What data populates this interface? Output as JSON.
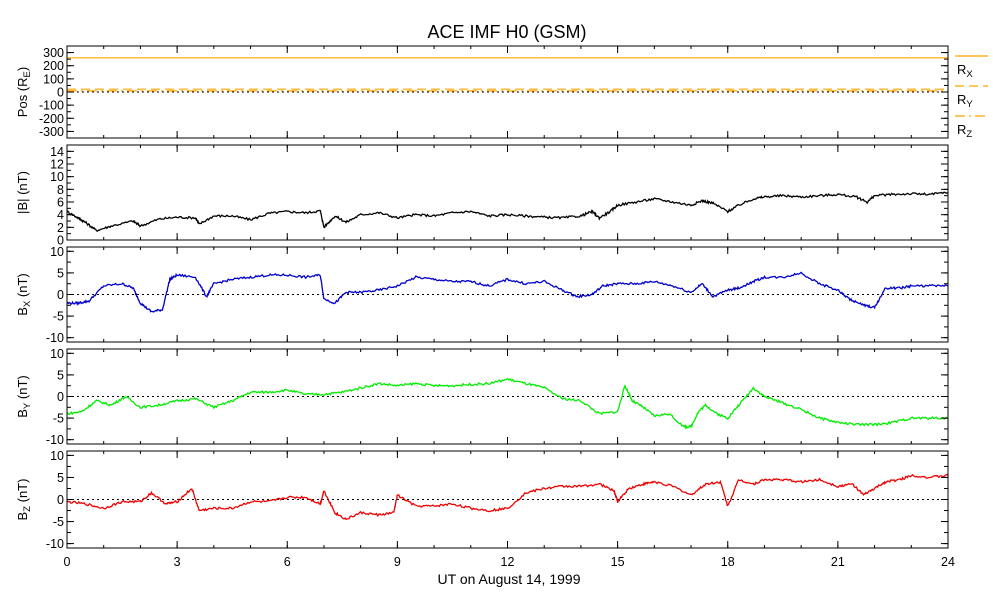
{
  "chart_data": {
    "type": "line",
    "title": "ACE IMF H0 (GSM)",
    "xlabel": "UT on August 14, 1999",
    "x_ticks": [
      "0",
      "3",
      "6",
      "9",
      "12",
      "15",
      "18",
      "21",
      "24"
    ],
    "xlim": [
      0,
      24
    ],
    "panels": [
      {
        "id": "pos",
        "ylabel": "Pos (R",
        "ylabel_sub": "E",
        "ylabel_end": ")",
        "ylim": [
          -350,
          350
        ],
        "y_ticks": [
          -300,
          -200,
          -100,
          0,
          100,
          200,
          300
        ],
        "y_tick_labels": [
          "-300",
          "-200",
          "-100",
          "0",
          "100",
          "200",
          "300"
        ],
        "zero_line": true,
        "series": [
          {
            "name": "R",
            "sub": "X",
            "color": "#ffa500",
            "dash": "solid",
            "x": [
              0,
              6,
              12,
              18,
              24
            ],
            "values": [
              260,
              260,
              260,
              260,
              260
            ]
          },
          {
            "name": "R",
            "sub": "Y",
            "color": "#ffa500",
            "dash": "dashed",
            "x": [
              0,
              6,
              12,
              18,
              24
            ],
            "values": [
              21,
              21,
              21,
              21,
              21
            ]
          },
          {
            "name": "R",
            "sub": "Z",
            "color": "#ffa500",
            "dash": "dashdot",
            "x": [
              0,
              6,
              12,
              18,
              24
            ],
            "values": [
              8,
              8,
              8,
              8,
              8
            ]
          }
        ]
      },
      {
        "id": "bmag",
        "ylabel": "|B| (nT)",
        "ylim": [
          0,
          15
        ],
        "y_ticks": [
          0,
          2,
          4,
          6,
          8,
          10,
          12,
          14
        ],
        "y_tick_labels": [
          "0",
          "2",
          "4",
          "6",
          "8",
          "10",
          "12",
          "14"
        ],
        "zero_line": false,
        "series": [
          {
            "name": "|B|",
            "color": "#000000",
            "x": [
              0,
              0.3,
              0.5,
              0.8,
              1.2,
              1.8,
              2.0,
              2.5,
              3.0,
              3.5,
              3.6,
              4.0,
              4.5,
              5.0,
              5.5,
              6.0,
              6.5,
              6.9,
              7.0,
              7.3,
              7.6,
              8.0,
              8.5,
              9.0,
              9.5,
              10.0,
              10.5,
              11.0,
              11.5,
              12.0,
              12.5,
              13.0,
              13.5,
              14.0,
              14.3,
              14.5,
              14.8,
              15.0,
              15.5,
              16.0,
              16.5,
              17.0,
              17.3,
              17.6,
              18.0,
              18.3,
              18.7,
              19.0,
              19.5,
              20.0,
              20.5,
              21.0,
              21.5,
              21.8,
              22.0,
              22.5,
              23.0,
              23.5,
              24.0
            ],
            "values": [
              4.5,
              3.5,
              2.8,
              1.5,
              2.2,
              3.0,
              2.2,
              3.3,
              3.6,
              3.5,
              2.5,
              3.8,
              3.8,
              3.2,
              4.2,
              4.5,
              4.3,
              4.6,
              2.0,
              3.8,
              2.8,
              4.0,
              4.3,
              3.5,
              4.0,
              3.8,
              4.3,
              4.5,
              3.8,
              4.0,
              3.8,
              3.6,
              3.5,
              3.8,
              4.5,
              3.5,
              4.5,
              5.5,
              6.0,
              6.5,
              6.0,
              5.5,
              6.2,
              5.8,
              4.5,
              5.5,
              6.5,
              6.8,
              7.0,
              6.8,
              7.0,
              7.2,
              6.8,
              6.0,
              7.0,
              7.2,
              7.3,
              7.2,
              7.5
            ]
          }
        ]
      },
      {
        "id": "bx",
        "ylabel": "B",
        "ylabel_sub": "X",
        "ylabel_end": " (nT)",
        "ylim": [
          -11,
          11
        ],
        "y_ticks": [
          -10,
          -5,
          0,
          5,
          10
        ],
        "y_tick_labels": [
          "-10",
          "-5",
          "0",
          "5",
          "10"
        ],
        "zero_line": true,
        "series": [
          {
            "name": "B_X",
            "color": "#0000cc",
            "x": [
              0,
              0.3,
              0.6,
              1.0,
              1.5,
              1.8,
              2.0,
              2.3,
              2.6,
              2.8,
              3.0,
              3.5,
              3.8,
              4.0,
              4.5,
              5.0,
              5.5,
              6.0,
              6.5,
              6.9,
              7.0,
              7.3,
              7.6,
              8.0,
              8.5,
              9.0,
              9.5,
              10.0,
              10.5,
              11.0,
              11.5,
              12.0,
              12.5,
              13.0,
              13.5,
              13.9,
              14.3,
              14.6,
              15.0,
              15.5,
              16.0,
              16.5,
              17.0,
              17.3,
              17.6,
              18.0,
              18.3,
              18.7,
              19.0,
              19.5,
              20.0,
              20.5,
              21.0,
              21.3,
              21.7,
              22.0,
              22.3,
              22.7,
              23.0,
              23.5,
              24.0
            ],
            "values": [
              -2.0,
              -2.0,
              -1.5,
              2.0,
              2.5,
              1.5,
              -2.0,
              -4.0,
              -3.5,
              3.5,
              4.5,
              4.0,
              -0.5,
              2.5,
              3.5,
              4.0,
              4.5,
              4.5,
              4.0,
              4.5,
              -1.0,
              -2.0,
              0.5,
              0.5,
              1.0,
              2.0,
              4.0,
              3.5,
              3.0,
              3.0,
              2.0,
              3.5,
              2.5,
              3.0,
              1.0,
              -0.5,
              0.0,
              2.0,
              2.5,
              2.5,
              3.0,
              2.0,
              0.5,
              2.5,
              -0.5,
              1.0,
              1.5,
              3.0,
              4.0,
              4.0,
              5.0,
              2.5,
              1.0,
              -1.0,
              -2.5,
              -3.0,
              1.5,
              1.5,
              2.0,
              2.0,
              2.0
            ]
          }
        ]
      },
      {
        "id": "by",
        "ylabel": "B",
        "ylabel_sub": "Y",
        "ylabel_end": " (nT)",
        "ylim": [
          -11,
          11
        ],
        "y_ticks": [
          -10,
          -5,
          0,
          5,
          10
        ],
        "y_tick_labels": [
          "-10",
          "-5",
          "0",
          "5",
          "10"
        ],
        "zero_line": true,
        "series": [
          {
            "name": "B_Y",
            "color": "#00ee00",
            "x": [
              0,
              0.4,
              0.8,
              1.2,
              1.6,
              2.0,
              2.5,
              3.0,
              3.5,
              4.0,
              4.5,
              5.0,
              5.5,
              6.0,
              6.5,
              7.0,
              7.5,
              8.0,
              8.5,
              9.0,
              9.5,
              10.0,
              10.5,
              11.0,
              11.5,
              12.0,
              12.5,
              13.0,
              13.5,
              14.0,
              14.5,
              15.0,
              15.2,
              15.4,
              15.7,
              16.0,
              16.4,
              16.8,
              17.0,
              17.2,
              17.4,
              17.7,
              18.0,
              18.3,
              18.7,
              19.0,
              19.5,
              20.0,
              20.5,
              21.0,
              21.5,
              22.0,
              22.5,
              23.0,
              23.5,
              24.0
            ],
            "values": [
              -4.0,
              -3.5,
              -1.0,
              -2.0,
              0.0,
              -2.5,
              -2.0,
              -1.0,
              -0.5,
              -2.5,
              -1.0,
              1.0,
              1.0,
              1.5,
              0.5,
              0.5,
              1.0,
              2.0,
              3.0,
              2.5,
              3.0,
              2.5,
              2.5,
              2.8,
              3.0,
              4.0,
              3.0,
              2.0,
              -0.5,
              -1.0,
              -4.0,
              -3.5,
              2.5,
              -1.0,
              -2.5,
              -4.5,
              -4.0,
              -7.0,
              -7.0,
              -3.5,
              -2.0,
              -4.0,
              -5.0,
              -2.0,
              2.0,
              0.0,
              -1.5,
              -3.0,
              -5.0,
              -6.0,
              -6.5,
              -6.5,
              -6.0,
              -5.0,
              -5.0,
              -5.0
            ]
          }
        ]
      },
      {
        "id": "bz",
        "ylabel": "B",
        "ylabel_sub": "Z",
        "ylabel_end": " (nT)",
        "ylim": [
          -11,
          11
        ],
        "y_ticks": [
          -10,
          -5,
          0,
          5,
          10
        ],
        "y_tick_labels": [
          "-10",
          "-5",
          "0",
          "5",
          "10"
        ],
        "zero_line": true,
        "series": [
          {
            "name": "B_Z",
            "color": "#ee0000",
            "x": [
              0,
              0.5,
              1.0,
              1.5,
              2.0,
              2.3,
              2.7,
              3.0,
              3.4,
              3.6,
              4.0,
              4.5,
              5.0,
              5.5,
              6.0,
              6.5,
              6.9,
              7.0,
              7.3,
              7.6,
              8.0,
              8.5,
              8.9,
              9.0,
              9.5,
              10.0,
              10.5,
              11.0,
              11.5,
              12.0,
              12.5,
              13.0,
              13.5,
              14.0,
              14.5,
              14.9,
              15.0,
              15.3,
              15.7,
              16.0,
              16.5,
              17.0,
              17.4,
              17.8,
              18.0,
              18.3,
              18.7,
              19.0,
              19.5,
              20.0,
              20.5,
              21.0,
              21.4,
              21.7,
              22.0,
              22.3,
              22.7,
              23.0,
              23.5,
              24.0
            ],
            "values": [
              -0.5,
              -1.0,
              -2.0,
              -0.5,
              -0.5,
              1.5,
              -1.0,
              -0.5,
              2.5,
              -2.5,
              -2.0,
              -2.0,
              -0.5,
              -0.5,
              0.5,
              0.5,
              -1.0,
              2.0,
              -3.0,
              -4.5,
              -3.0,
              -3.5,
              -3.0,
              1.0,
              -1.5,
              -1.5,
              -1.0,
              -2.0,
              -2.5,
              -2.0,
              1.5,
              2.5,
              3.0,
              3.0,
              3.5,
              2.0,
              -0.5,
              2.5,
              3.5,
              4.0,
              3.0,
              1.0,
              3.5,
              4.0,
              -1.5,
              4.5,
              3.5,
              4.5,
              4.5,
              4.0,
              4.5,
              3.0,
              3.5,
              1.0,
              2.5,
              4.0,
              4.5,
              5.5,
              5.0,
              5.5
            ]
          }
        ]
      }
    ]
  }
}
